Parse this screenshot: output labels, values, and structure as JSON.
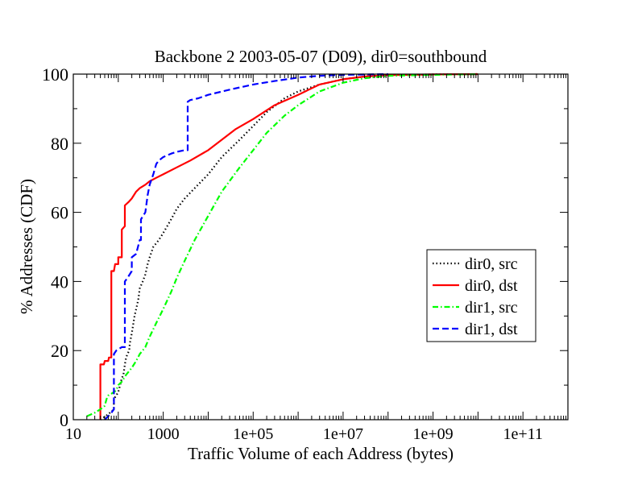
{
  "chart_data": {
    "type": "line",
    "title": "Backbone 2 2003-05-07 (D09), dir0=southbound",
    "xlabel": "Traffic Volume of each Address (bytes)",
    "ylabel": "% Addresses (CDF)",
    "x_scale": "log",
    "xlim": [
      10,
      1000000000000.0
    ],
    "ylim": [
      0,
      100
    ],
    "x_ticks": [
      {
        "value": 10,
        "label": "10"
      },
      {
        "value": 1000,
        "label": "1000"
      },
      {
        "value": 100000,
        "label": "1e+05"
      },
      {
        "value": 10000000,
        "label": "1e+07"
      },
      {
        "value": 1000000000,
        "label": "1e+09"
      },
      {
        "value": 100000000000,
        "label": "1e+11"
      }
    ],
    "y_ticks": [
      {
        "value": 0,
        "label": "0"
      },
      {
        "value": 20,
        "label": "20"
      },
      {
        "value": 40,
        "label": "40"
      },
      {
        "value": 60,
        "label": "60"
      },
      {
        "value": 80,
        "label": "80"
      },
      {
        "value": 100,
        "label": "100"
      }
    ],
    "grid": false,
    "legend_position": "right-middle",
    "series": [
      {
        "name": "dir0, src",
        "color": "#000000",
        "dash": "dotted",
        "points": [
          [
            40,
            0
          ],
          [
            52,
            1
          ],
          [
            65,
            2
          ],
          [
            80,
            3
          ],
          [
            80,
            6
          ],
          [
            90,
            7
          ],
          [
            100,
            8
          ],
          [
            110,
            10
          ],
          [
            120,
            12
          ],
          [
            130,
            13
          ],
          [
            140,
            16
          ],
          [
            150,
            18
          ],
          [
            160,
            19
          ],
          [
            175,
            20
          ],
          [
            180,
            22
          ],
          [
            200,
            25
          ],
          [
            230,
            30
          ],
          [
            260,
            33
          ],
          [
            280,
            35
          ],
          [
            300,
            38
          ],
          [
            350,
            40
          ],
          [
            400,
            42
          ],
          [
            450,
            45
          ],
          [
            500,
            47
          ],
          [
            600,
            50
          ],
          [
            800,
            52
          ],
          [
            1000,
            54
          ],
          [
            1500,
            58
          ],
          [
            2000,
            61
          ],
          [
            3000,
            64
          ],
          [
            5000,
            67
          ],
          [
            10000,
            71
          ],
          [
            20000,
            76
          ],
          [
            50000,
            81
          ],
          [
            100000,
            85
          ],
          [
            200000,
            89
          ],
          [
            500000,
            93
          ],
          [
            1000000,
            95
          ],
          [
            3000000,
            97
          ],
          [
            10000000,
            98.5
          ],
          [
            30000000,
            99.3
          ],
          [
            100000000,
            99.7
          ],
          [
            1000000000,
            99.9
          ],
          [
            10000000000,
            100
          ]
        ]
      },
      {
        "name": "dir0, dst",
        "color": "#ff0000",
        "dash": "solid",
        "points": [
          [
            40,
            0
          ],
          [
            40,
            16
          ],
          [
            48,
            16
          ],
          [
            50,
            17
          ],
          [
            60,
            17
          ],
          [
            62,
            18
          ],
          [
            70,
            18
          ],
          [
            70,
            43
          ],
          [
            80,
            43
          ],
          [
            85,
            45
          ],
          [
            100,
            45
          ],
          [
            100,
            47
          ],
          [
            120,
            47
          ],
          [
            120,
            55
          ],
          [
            140,
            56
          ],
          [
            140,
            62
          ],
          [
            170,
            63
          ],
          [
            200,
            64
          ],
          [
            250,
            66
          ],
          [
            300,
            67
          ],
          [
            400,
            68
          ],
          [
            500,
            69
          ],
          [
            700,
            70
          ],
          [
            1000,
            71
          ],
          [
            2000,
            73
          ],
          [
            4000,
            75
          ],
          [
            10000,
            78
          ],
          [
            20000,
            81
          ],
          [
            40000,
            84
          ],
          [
            100000,
            87
          ],
          [
            300000,
            91
          ],
          [
            1000000,
            94
          ],
          [
            3000000,
            97
          ],
          [
            10000000,
            98.5
          ],
          [
            30000000,
            99.3
          ],
          [
            100000000,
            99.7
          ],
          [
            1000000000,
            99.9
          ],
          [
            10000000000,
            100
          ]
        ]
      },
      {
        "name": "dir1, src",
        "color": "#00ff00",
        "dash": "dash-dot",
        "points": [
          [
            20,
            1
          ],
          [
            30,
            2
          ],
          [
            40,
            3
          ],
          [
            50,
            4
          ],
          [
            55,
            6
          ],
          [
            60,
            7
          ],
          [
            70,
            7.5
          ],
          [
            80,
            8
          ],
          [
            90,
            8.5
          ],
          [
            100,
            10
          ],
          [
            120,
            11
          ],
          [
            150,
            13
          ],
          [
            200,
            15
          ],
          [
            250,
            17
          ],
          [
            300,
            19
          ],
          [
            400,
            21
          ],
          [
            500,
            24
          ],
          [
            700,
            28
          ],
          [
            1000,
            32
          ],
          [
            1500,
            37
          ],
          [
            2000,
            41
          ],
          [
            3000,
            46
          ],
          [
            5000,
            52
          ],
          [
            10000,
            59
          ],
          [
            20000,
            66
          ],
          [
            50000,
            73
          ],
          [
            100000,
            78
          ],
          [
            200000,
            83
          ],
          [
            500000,
            88
          ],
          [
            1000000,
            91
          ],
          [
            3000000,
            95
          ],
          [
            10000000,
            97.5
          ],
          [
            30000000,
            98.8
          ],
          [
            100000000,
            99.5
          ],
          [
            1000000000,
            99.8
          ],
          [
            10000000000,
            100
          ]
        ]
      },
      {
        "name": "dir1, dst",
        "color": "#0000ff",
        "dash": "dashed",
        "points": [
          [
            50,
            0
          ],
          [
            60,
            1
          ],
          [
            70,
            2
          ],
          [
            80,
            3
          ],
          [
            80,
            19
          ],
          [
            90,
            20
          ],
          [
            120,
            21
          ],
          [
            140,
            21
          ],
          [
            140,
            40
          ],
          [
            160,
            41
          ],
          [
            200,
            43
          ],
          [
            200,
            47
          ],
          [
            250,
            48
          ],
          [
            300,
            52
          ],
          [
            320,
            52
          ],
          [
            320,
            58
          ],
          [
            400,
            60
          ],
          [
            450,
            65
          ],
          [
            500,
            68
          ],
          [
            600,
            71
          ],
          [
            700,
            74
          ],
          [
            800,
            75
          ],
          [
            1000,
            76
          ],
          [
            1500,
            77
          ],
          [
            2000,
            77.5
          ],
          [
            3000,
            78
          ],
          [
            3500,
            78
          ],
          [
            3500,
            92
          ],
          [
            4000,
            92.5
          ],
          [
            6000,
            93
          ],
          [
            10000,
            94
          ],
          [
            30000,
            95.5
          ],
          [
            100000,
            97
          ],
          [
            300000,
            98
          ],
          [
            1000000,
            99
          ],
          [
            3000000,
            99.5
          ],
          [
            10000000,
            99.8
          ],
          [
            100000000,
            100
          ]
        ]
      }
    ]
  }
}
